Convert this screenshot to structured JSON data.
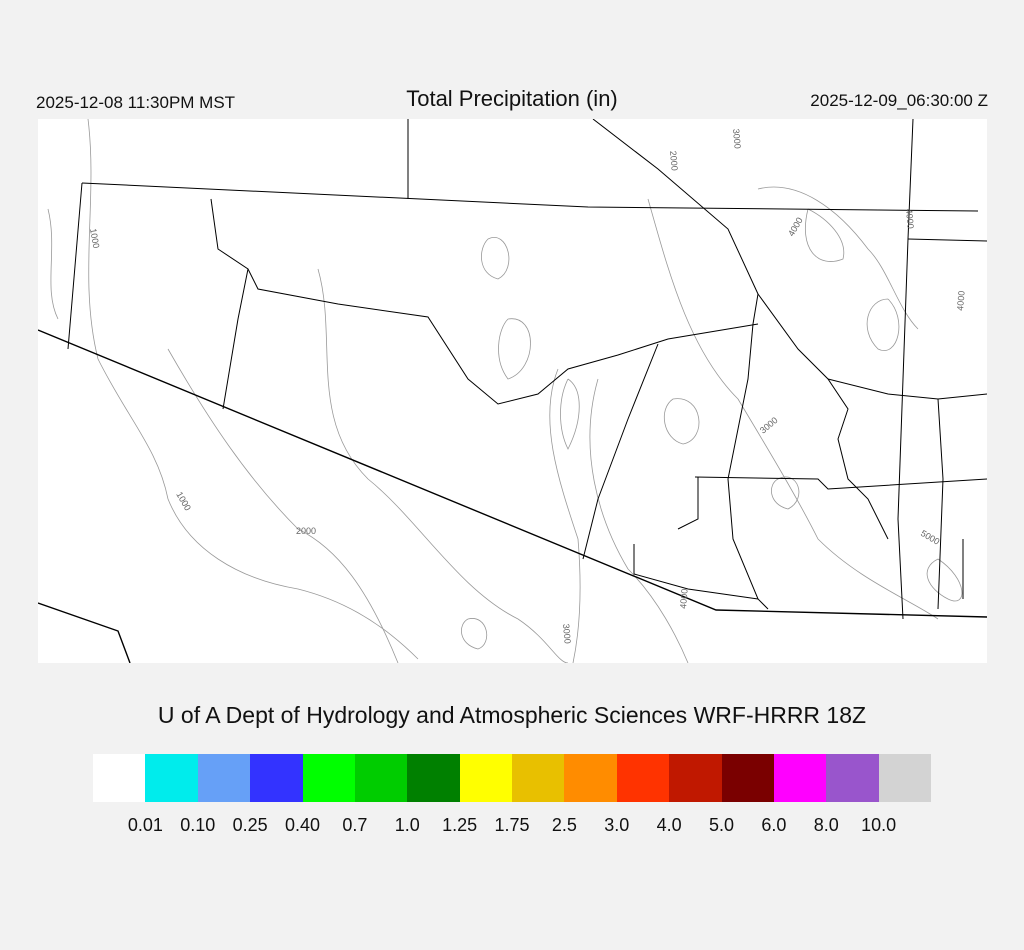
{
  "header": {
    "left_time": "2025-12-08 11:30PM MST",
    "title": "Total Precipitation (in)",
    "right_time": "2025-12-09_06:30:00 Z"
  },
  "credit": "U of A Dept of Hydrology and Atmospheric Sciences WRF-HRRR 18Z",
  "colorbar": {
    "colors": [
      "#ffffff",
      "#00ecec",
      "#66a0f7",
      "#3333ff",
      "#00ff00",
      "#00cc00",
      "#008000",
      "#ffff00",
      "#e8c000",
      "#ff8c00",
      "#ff3300",
      "#c01800",
      "#7a0000",
      "#ff00ff",
      "#9955cc",
      "#d3d3d3"
    ],
    "labels": [
      "0.01",
      "0.10",
      "0.25",
      "0.40",
      "0.7",
      "1.0",
      "1.25",
      "1.75",
      "2.5",
      "3.0",
      "4.0",
      "5.0",
      "6.0",
      "8.0",
      "10.0"
    ]
  },
  "map": {
    "contour_labels": [
      "1000",
      "1000",
      "2000",
      "2000",
      "3000",
      "3000",
      "3000",
      "4000",
      "4000",
      "4000",
      "4000",
      "5000"
    ],
    "precip_shown": "none"
  }
}
